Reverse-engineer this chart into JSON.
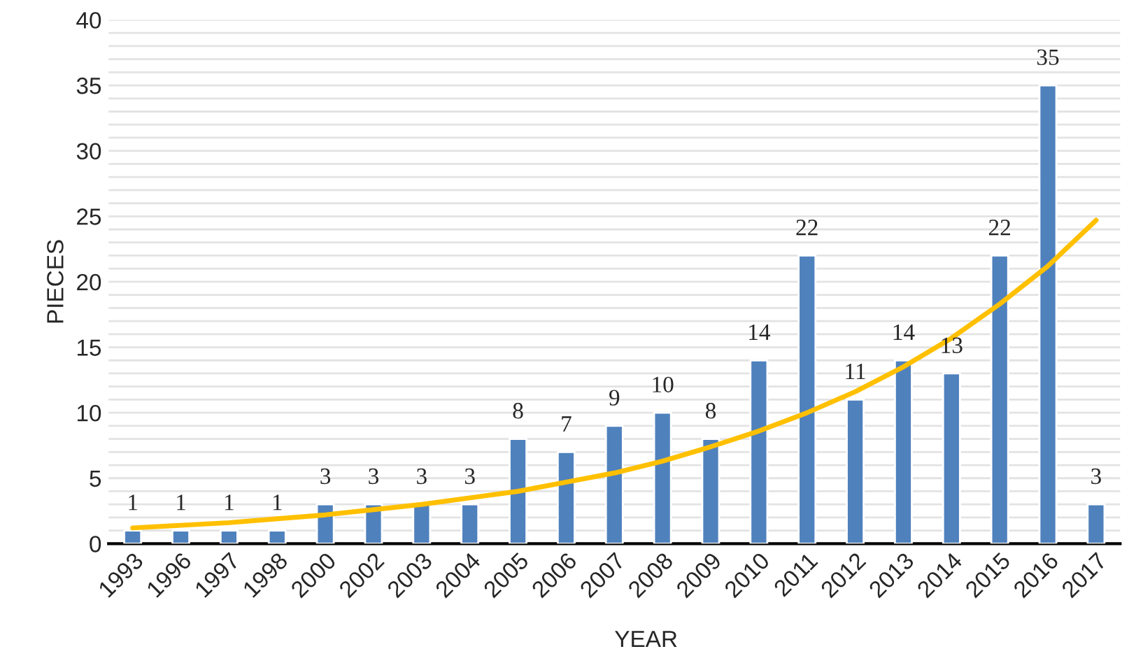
{
  "chart_data": {
    "type": "bar",
    "xlabel": "YEAR",
    "ylabel": "PIECES",
    "categories": [
      "1993",
      "1996",
      "1997",
      "1998",
      "2000",
      "2002",
      "2003",
      "2004",
      "2005",
      "2006",
      "2007",
      "2008",
      "2009",
      "2010",
      "2011",
      "2012",
      "2013",
      "2014",
      "2015",
      "2016",
      "2017"
    ],
    "series": [
      {
        "color": "#4f81bd",
        "values": [
          1,
          1,
          1,
          1,
          3,
          3,
          3,
          3,
          8,
          7,
          9,
          10,
          8,
          14,
          22,
          11,
          14,
          13,
          22,
          35,
          3
        ],
        "value_labels": [
          "1",
          "1",
          "1",
          "1",
          "3",
          "3",
          "3",
          "3",
          "8",
          "7",
          "9",
          "10",
          "8",
          "14",
          "22",
          "11",
          "14",
          "13",
          "22",
          "35",
          "3"
        ]
      },
      {
        "type": "line",
        "color": "#ffc000",
        "values": [
          1.2,
          1.4,
          1.6,
          1.9,
          2.2,
          2.6,
          3.0,
          3.5,
          4.0,
          4.7,
          5.4,
          6.3,
          7.4,
          8.6,
          10.0,
          11.6,
          13.5,
          15.7,
          18.3,
          21.2,
          24.7
        ]
      }
    ],
    "ylim": [
      0,
      40
    ],
    "yticks": [
      0,
      {
        "value": 1,
        "label": null
      },
      {
        "value": 2,
        "label": null
      },
      {
        "value": 3,
        "label": null
      },
      {
        "value": 4,
        "label": null
      },
      5,
      {
        "value": 6,
        "label": null
      },
      {
        "value": 7,
        "label": null
      },
      {
        "value": 8,
        "label": null
      },
      {
        "value": 9,
        "label": null
      },
      10,
      {
        "value": 11,
        "label": null
      },
      {
        "value": 12,
        "label": null
      },
      {
        "value": 13,
        "label": null
      },
      {
        "value": 14,
        "label": null
      },
      15,
      {
        "value": 16,
        "label": null
      },
      {
        "value": 17,
        "label": null
      },
      {
        "value": 18,
        "label": null
      },
      {
        "value": 19,
        "label": null
      },
      20,
      {
        "value": 21,
        "label": null
      },
      {
        "value": 22,
        "label": null
      },
      {
        "value": 23,
        "label": null
      },
      {
        "value": 24,
        "label": null
      },
      25,
      {
        "value": 26,
        "label": null
      },
      {
        "value": 27,
        "label": null
      },
      {
        "value": 28,
        "label": null
      },
      {
        "value": 29,
        "label": null
      },
      30,
      {
        "value": 31,
        "label": null
      },
      {
        "value": 32,
        "label": null
      },
      {
        "value": 33,
        "label": null
      },
      {
        "value": 34,
        "label": null
      },
      35,
      {
        "value": 36,
        "label": null
      },
      {
        "value": 37,
        "label": null
      },
      {
        "value": 38,
        "label": null
      },
      {
        "value": 39,
        "label": null
      },
      40
    ],
    "grid": "y",
    "legend": false
  }
}
